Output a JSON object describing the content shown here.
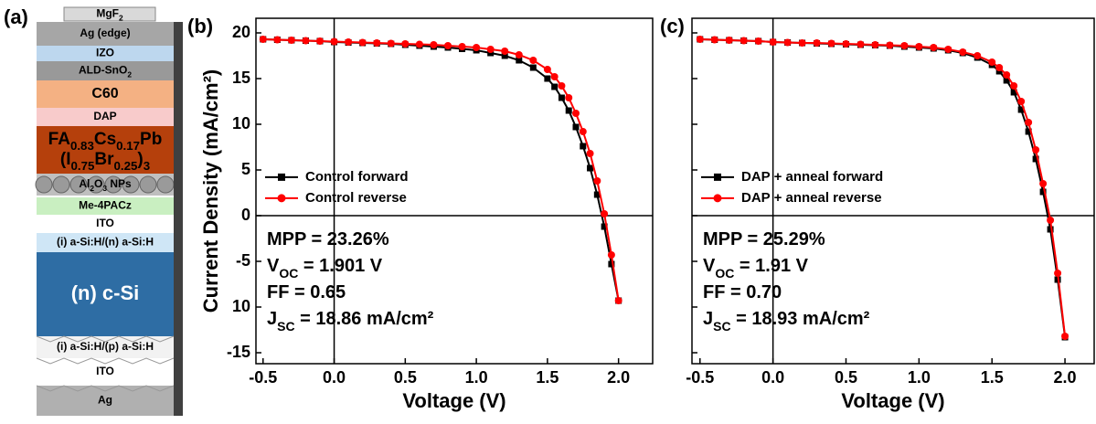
{
  "device_stack": {
    "panel_label": "(a)",
    "layers": [
      {
        "lines": [
          [
            {
              "t": "MgF"
            },
            {
              "sub": "2"
            }
          ]
        ],
        "color": "#d9d9d9",
        "text_color": "#000000"
      },
      {
        "lines": [
          [
            {
              "t": "Ag (edge)"
            }
          ]
        ],
        "color": "#a6a6a6",
        "text_color": "#000000"
      },
      {
        "lines": [
          [
            {
              "t": "IZO"
            }
          ]
        ],
        "color": "#bdd7ee",
        "text_color": "#000000"
      },
      {
        "lines": [
          [
            {
              "t": "ALD-SnO"
            },
            {
              "sub": "2"
            }
          ]
        ],
        "color": "#999999",
        "text_color": "#000000"
      },
      {
        "lines": [
          [
            {
              "t": "C60"
            }
          ]
        ],
        "color": "#f4b183",
        "text_color": "#000000"
      },
      {
        "lines": [
          [
            {
              "t": "DAP"
            }
          ]
        ],
        "color": "#f8cbcb",
        "text_color": "#000000"
      },
      {
        "lines": [
          [
            {
              "t": "FA"
            },
            {
              "sub": "0.83"
            },
            {
              "t": "Cs"
            },
            {
              "sub": "0.17"
            },
            {
              "t": "Pb"
            }
          ],
          [
            {
              "t": "(I"
            },
            {
              "sub": "0.75"
            },
            {
              "t": "Br"
            },
            {
              "sub": "0.25"
            },
            {
              "t": ")"
            },
            {
              "sub": "3"
            }
          ]
        ],
        "color": "#b5400c",
        "text_color": "#000000"
      },
      {
        "lines": [
          [
            {
              "t": "Al"
            },
            {
              "sub": "2"
            },
            {
              "t": "O"
            },
            {
              "sub": "3"
            },
            {
              "t": " NPs"
            }
          ]
        ],
        "color": "#bfbfbf",
        "text_color": "#000000"
      },
      {
        "lines": [
          [
            {
              "t": "Me-4PACz"
            }
          ]
        ],
        "color": "#c9efc1",
        "text_color": "#000000"
      },
      {
        "lines": [
          [
            {
              "t": "ITO"
            }
          ]
        ],
        "color": "#ffffff",
        "text_color": "#000000"
      },
      {
        "lines": [
          [
            {
              "t": "(i) a-Si:H/(n) a-Si:H"
            }
          ]
        ],
        "color": "#cfe6f6",
        "text_color": "#000000"
      },
      {
        "lines": [
          [
            {
              "t": "(n) c-Si"
            }
          ]
        ],
        "color": "#2e6da4",
        "text_color": "#ffffff"
      },
      {
        "lines": [
          [
            {
              "t": "(i) a-Si:H/(p) a-Si:H"
            }
          ]
        ],
        "color": "#f2f2f2",
        "text_color": "#000000"
      },
      {
        "lines": [
          [
            {
              "t": "ITO"
            }
          ]
        ],
        "color": "#ffffff",
        "text_color": "#000000"
      },
      {
        "lines": [
          [
            {
              "t": "Ag"
            }
          ]
        ],
        "color": "#b0b0b0",
        "text_color": "#000000"
      }
    ]
  },
  "chart_data": [
    {
      "type": "line",
      "panel_label": "(b)",
      "x_label": "Voltage (V)",
      "y_label": "Current Density (mA/cm²)",
      "y_tick_labels": true,
      "legend": "center-left",
      "x": [
        -0.5,
        -0.4,
        -0.3,
        -0.2,
        -0.1,
        0,
        0.1,
        0.2,
        0.3,
        0.4,
        0.5,
        0.6,
        0.7,
        0.8,
        0.9,
        1.0,
        1.1,
        1.2,
        1.3,
        1.4,
        1.5,
        1.55,
        1.6,
        1.65,
        1.7,
        1.75,
        1.8,
        1.85,
        1.9,
        1.95,
        2.0
      ],
      "series": [
        {
          "name": "Control forward",
          "color": "#000000",
          "marker": "square",
          "values": [
            19.3,
            19.25,
            19.2,
            19.15,
            19.1,
            19.0,
            18.95,
            18.9,
            18.85,
            18.8,
            18.7,
            18.6,
            18.5,
            18.4,
            18.25,
            18.1,
            17.8,
            17.5,
            17.0,
            16.2,
            15.0,
            14.1,
            12.9,
            11.5,
            9.7,
            7.6,
            5.2,
            2.3,
            -1.2,
            -5.3,
            -9.3
          ]
        },
        {
          "name": "Control reverse",
          "color": "#ff0000",
          "marker": "circle",
          "values": [
            19.3,
            19.25,
            19.2,
            19.15,
            19.1,
            19.05,
            19.0,
            18.95,
            18.9,
            18.85,
            18.8,
            18.75,
            18.7,
            18.6,
            18.5,
            18.4,
            18.2,
            18.0,
            17.6,
            17.0,
            16.0,
            15.2,
            14.2,
            12.9,
            11.2,
            9.2,
            6.8,
            3.8,
            0.2,
            -4.3,
            -9.3
          ]
        }
      ],
      "annotations": [
        [
          {
            "t": "MPP = 23.26%"
          }
        ],
        [
          {
            "t": "V"
          },
          {
            "sub": "OC"
          },
          {
            "t": " = 1.901 V"
          }
        ],
        [
          {
            "t": "FF = 0.65"
          }
        ],
        [
          {
            "t": "J"
          },
          {
            "sub": "SC"
          },
          {
            "t": " = 18.86 mA/cm²"
          }
        ]
      ],
      "xlim": [
        -0.55,
        2.24
      ],
      "ylim": [
        -16.2,
        21.6
      ],
      "xticks": [
        -0.5,
        {
          "value": 0,
          "label": "0.0"
        },
        0.5,
        {
          "value": 1,
          "label": "1.0"
        },
        1.5,
        {
          "value": 2,
          "label": "2.0"
        }
      ],
      "yticks": [
        20,
        15,
        10,
        5,
        0,
        -5,
        {
          "value": -10,
          "label": "10"
        },
        -15
      ]
    },
    {
      "type": "line",
      "panel_label": "(c)",
      "x_label": "Voltage (V)",
      "y_tick_labels": false,
      "legend": "center-left",
      "x": [
        -0.5,
        -0.4,
        -0.3,
        -0.2,
        -0.1,
        0,
        0.1,
        0.2,
        0.3,
        0.4,
        0.5,
        0.6,
        0.7,
        0.8,
        0.9,
        1.0,
        1.1,
        1.2,
        1.3,
        1.4,
        1.5,
        1.55,
        1.6,
        1.65,
        1.7,
        1.75,
        1.8,
        1.85,
        1.9,
        1.95,
        2.0
      ],
      "series": [
        {
          "name": "DAP + anneal forward",
          "color": "#000000",
          "marker": "square",
          "values": [
            19.3,
            19.25,
            19.2,
            19.15,
            19.1,
            19.0,
            18.95,
            18.9,
            18.85,
            18.8,
            18.75,
            18.7,
            18.65,
            18.6,
            18.5,
            18.4,
            18.3,
            18.1,
            17.8,
            17.3,
            16.5,
            15.8,
            14.8,
            13.5,
            11.6,
            9.2,
            6.2,
            2.6,
            -1.5,
            -7.0,
            -13.3
          ]
        },
        {
          "name": "DAP + anneal reverse",
          "color": "#ff0000",
          "marker": "circle",
          "values": [
            19.3,
            19.25,
            19.2,
            19.15,
            19.1,
            19.0,
            18.95,
            18.9,
            18.9,
            18.85,
            18.8,
            18.75,
            18.7,
            18.65,
            18.6,
            18.5,
            18.4,
            18.2,
            17.9,
            17.5,
            16.8,
            16.2,
            15.4,
            14.2,
            12.5,
            10.2,
            7.2,
            3.5,
            -0.5,
            -6.3,
            -13.2
          ]
        }
      ],
      "annotations": [
        [
          {
            "t": "MPP = 25.29%"
          }
        ],
        [
          {
            "t": "V"
          },
          {
            "sub": "OC"
          },
          {
            "t": " = 1.91 V"
          }
        ],
        [
          {
            "t": "FF = 0.70"
          }
        ],
        [
          {
            "t": "J"
          },
          {
            "sub": "SC"
          },
          {
            "t": " = 18.93 mA/cm²"
          }
        ]
      ],
      "xlim": [
        -0.555,
        2.2
      ],
      "ylim": [
        -16.2,
        21.6
      ],
      "xticks": [
        -0.5,
        {
          "value": 0,
          "label": "0.0"
        },
        0.5,
        {
          "value": 1,
          "label": "1.0"
        },
        1.5,
        {
          "value": 2,
          "label": "2.0"
        }
      ],
      "yticks": [
        20,
        15,
        10,
        5,
        0,
        -5,
        -10,
        -15
      ]
    }
  ]
}
